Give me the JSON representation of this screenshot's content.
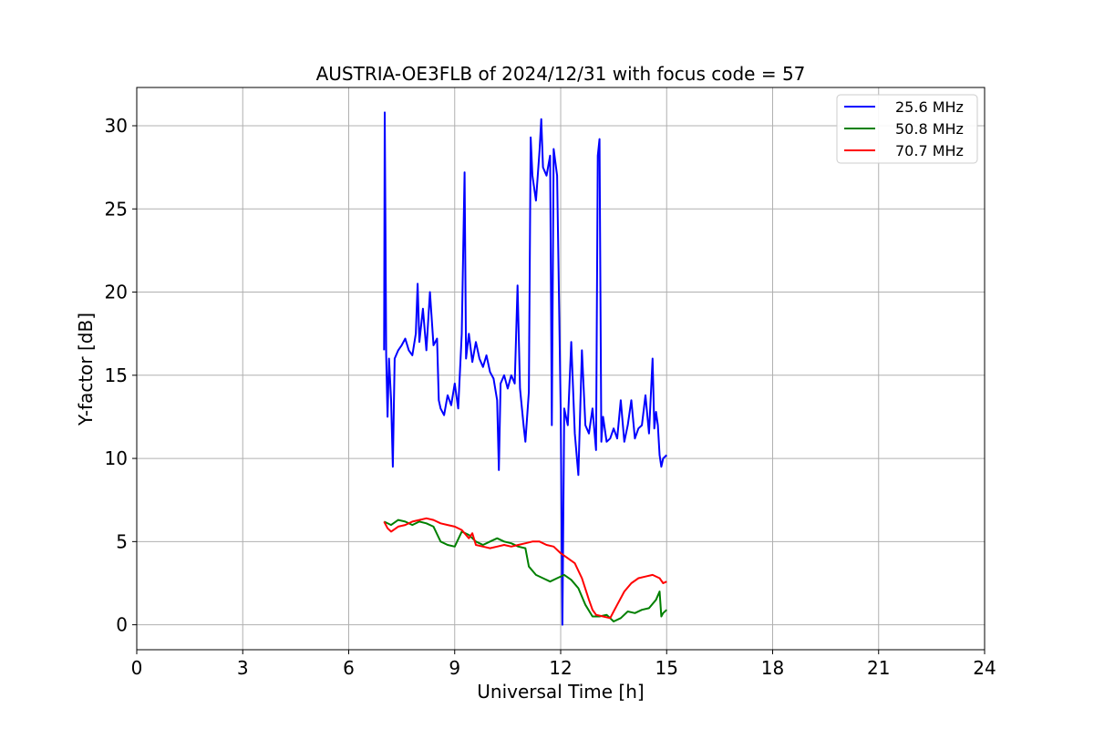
{
  "chart_data": {
    "type": "line",
    "title": "AUSTRIA-OE3FLB of 2024/12/31 with focus code = 57",
    "xlabel": "Universal Time [h]",
    "ylabel": "Y-factor [dB]",
    "xlim": [
      0,
      24
    ],
    "ylim": [
      -1.5,
      32.3
    ],
    "xticks": [
      0,
      3,
      6,
      9,
      12,
      15,
      18,
      21,
      24
    ],
    "yticks": [
      0,
      5,
      10,
      15,
      20,
      25,
      30
    ],
    "grid": true,
    "legend_position": "top-right",
    "series": [
      {
        "name": "25.6 MHz",
        "color": "#0000ff",
        "points": [
          [
            7.0,
            16.5
          ],
          [
            7.02,
            30.8
          ],
          [
            7.04,
            24.0
          ],
          [
            7.06,
            16.2
          ],
          [
            7.1,
            12.5
          ],
          [
            7.14,
            16.0
          ],
          [
            7.2,
            13.5
          ],
          [
            7.25,
            9.5
          ],
          [
            7.3,
            16.0
          ],
          [
            7.4,
            16.5
          ],
          [
            7.5,
            16.8
          ],
          [
            7.6,
            17.2
          ],
          [
            7.7,
            16.5
          ],
          [
            7.8,
            16.2
          ],
          [
            7.9,
            17.5
          ],
          [
            7.95,
            20.5
          ],
          [
            8.0,
            17.0
          ],
          [
            8.1,
            19.0
          ],
          [
            8.2,
            16.5
          ],
          [
            8.3,
            20.0
          ],
          [
            8.4,
            16.8
          ],
          [
            8.5,
            17.2
          ],
          [
            8.55,
            13.5
          ],
          [
            8.6,
            13.0
          ],
          [
            8.7,
            12.6
          ],
          [
            8.8,
            13.8
          ],
          [
            8.9,
            13.2
          ],
          [
            9.0,
            14.5
          ],
          [
            9.1,
            13.0
          ],
          [
            9.2,
            17.5
          ],
          [
            9.28,
            27.2
          ],
          [
            9.32,
            16.0
          ],
          [
            9.4,
            17.5
          ],
          [
            9.5,
            15.8
          ],
          [
            9.6,
            17.0
          ],
          [
            9.7,
            16.0
          ],
          [
            9.8,
            15.5
          ],
          [
            9.9,
            16.2
          ],
          [
            10.0,
            15.2
          ],
          [
            10.1,
            14.8
          ],
          [
            10.2,
            13.5
          ],
          [
            10.25,
            9.3
          ],
          [
            10.3,
            14.5
          ],
          [
            10.4,
            15.0
          ],
          [
            10.5,
            14.2
          ],
          [
            10.6,
            15.0
          ],
          [
            10.7,
            14.5
          ],
          [
            10.78,
            20.4
          ],
          [
            10.85,
            14.2
          ],
          [
            10.95,
            12.0
          ],
          [
            11.0,
            11.0
          ],
          [
            11.1,
            14.0
          ],
          [
            11.15,
            29.3
          ],
          [
            11.2,
            27.0
          ],
          [
            11.3,
            25.5
          ],
          [
            11.4,
            28.5
          ],
          [
            11.45,
            30.4
          ],
          [
            11.5,
            27.5
          ],
          [
            11.6,
            27.0
          ],
          [
            11.7,
            28.2
          ],
          [
            11.75,
            12.0
          ],
          [
            11.8,
            28.6
          ],
          [
            11.9,
            27.0
          ],
          [
            12.0,
            13.0
          ],
          [
            12.05,
            0.0
          ],
          [
            12.1,
            13.0
          ],
          [
            12.2,
            12.0
          ],
          [
            12.3,
            17.0
          ],
          [
            12.4,
            11.5
          ],
          [
            12.5,
            9.0
          ],
          [
            12.6,
            16.5
          ],
          [
            12.7,
            12.0
          ],
          [
            12.8,
            11.5
          ],
          [
            12.9,
            13.0
          ],
          [
            13.0,
            10.5
          ],
          [
            13.05,
            28.2
          ],
          [
            13.1,
            29.2
          ],
          [
            13.15,
            11.0
          ],
          [
            13.2,
            12.5
          ],
          [
            13.3,
            11.0
          ],
          [
            13.4,
            11.2
          ],
          [
            13.5,
            11.8
          ],
          [
            13.6,
            11.2
          ],
          [
            13.7,
            13.5
          ],
          [
            13.8,
            11.0
          ],
          [
            13.9,
            12.0
          ],
          [
            14.0,
            13.5
          ],
          [
            14.1,
            11.2
          ],
          [
            14.2,
            11.8
          ],
          [
            14.3,
            12.0
          ],
          [
            14.4,
            13.8
          ],
          [
            14.5,
            11.5
          ],
          [
            14.6,
            16.0
          ],
          [
            14.65,
            11.8
          ],
          [
            14.7,
            12.8
          ],
          [
            14.75,
            12.0
          ],
          [
            14.8,
            10.2
          ],
          [
            14.85,
            9.5
          ],
          [
            14.9,
            10.0
          ],
          [
            15.0,
            10.2
          ]
        ]
      },
      {
        "name": "50.8 MHz",
        "color": "#008000",
        "points": [
          [
            7.0,
            6.2
          ],
          [
            7.2,
            6.0
          ],
          [
            7.4,
            6.3
          ],
          [
            7.6,
            6.2
          ],
          [
            7.8,
            6.0
          ],
          [
            8.0,
            6.2
          ],
          [
            8.2,
            6.1
          ],
          [
            8.4,
            5.9
          ],
          [
            8.6,
            5.0
          ],
          [
            8.8,
            4.8
          ],
          [
            9.0,
            4.7
          ],
          [
            9.2,
            5.6
          ],
          [
            9.4,
            5.4
          ],
          [
            9.6,
            5.0
          ],
          [
            9.8,
            4.8
          ],
          [
            10.0,
            5.0
          ],
          [
            10.2,
            5.2
          ],
          [
            10.4,
            5.0
          ],
          [
            10.6,
            4.9
          ],
          [
            10.8,
            4.7
          ],
          [
            11.0,
            4.6
          ],
          [
            11.1,
            3.5
          ],
          [
            11.3,
            3.0
          ],
          [
            11.5,
            2.8
          ],
          [
            11.7,
            2.6
          ],
          [
            11.9,
            2.8
          ],
          [
            12.1,
            3.0
          ],
          [
            12.3,
            2.7
          ],
          [
            12.5,
            2.2
          ],
          [
            12.7,
            1.2
          ],
          [
            12.9,
            0.5
          ],
          [
            13.1,
            0.5
          ],
          [
            13.3,
            0.6
          ],
          [
            13.5,
            0.2
          ],
          [
            13.7,
            0.4
          ],
          [
            13.9,
            0.8
          ],
          [
            14.1,
            0.7
          ],
          [
            14.3,
            0.9
          ],
          [
            14.5,
            1.0
          ],
          [
            14.7,
            1.5
          ],
          [
            14.8,
            2.0
          ],
          [
            14.85,
            0.5
          ],
          [
            14.9,
            0.7
          ],
          [
            15.0,
            0.9
          ]
        ]
      },
      {
        "name": "70.7 MHz",
        "color": "#ff0000",
        "points": [
          [
            7.0,
            6.2
          ],
          [
            7.1,
            5.8
          ],
          [
            7.2,
            5.6
          ],
          [
            7.4,
            5.9
          ],
          [
            7.6,
            6.0
          ],
          [
            7.8,
            6.2
          ],
          [
            8.0,
            6.3
          ],
          [
            8.2,
            6.4
          ],
          [
            8.4,
            6.3
          ],
          [
            8.6,
            6.1
          ],
          [
            8.8,
            6.0
          ],
          [
            9.0,
            5.9
          ],
          [
            9.2,
            5.7
          ],
          [
            9.4,
            5.2
          ],
          [
            9.5,
            5.5
          ],
          [
            9.6,
            4.8
          ],
          [
            9.8,
            4.7
          ],
          [
            10.0,
            4.6
          ],
          [
            10.2,
            4.7
          ],
          [
            10.4,
            4.8
          ],
          [
            10.6,
            4.7
          ],
          [
            10.8,
            4.8
          ],
          [
            11.0,
            4.9
          ],
          [
            11.2,
            5.0
          ],
          [
            11.4,
            5.0
          ],
          [
            11.6,
            4.8
          ],
          [
            11.8,
            4.7
          ],
          [
            12.0,
            4.3
          ],
          [
            12.2,
            4.0
          ],
          [
            12.4,
            3.7
          ],
          [
            12.6,
            2.8
          ],
          [
            12.8,
            1.5
          ],
          [
            12.9,
            0.9
          ],
          [
            13.0,
            0.6
          ],
          [
            13.2,
            0.5
          ],
          [
            13.4,
            0.4
          ],
          [
            13.5,
            0.8
          ],
          [
            13.6,
            1.2
          ],
          [
            13.8,
            2.0
          ],
          [
            14.0,
            2.5
          ],
          [
            14.2,
            2.8
          ],
          [
            14.4,
            2.9
          ],
          [
            14.6,
            3.0
          ],
          [
            14.8,
            2.8
          ],
          [
            14.9,
            2.5
          ],
          [
            15.0,
            2.6
          ]
        ]
      }
    ]
  }
}
